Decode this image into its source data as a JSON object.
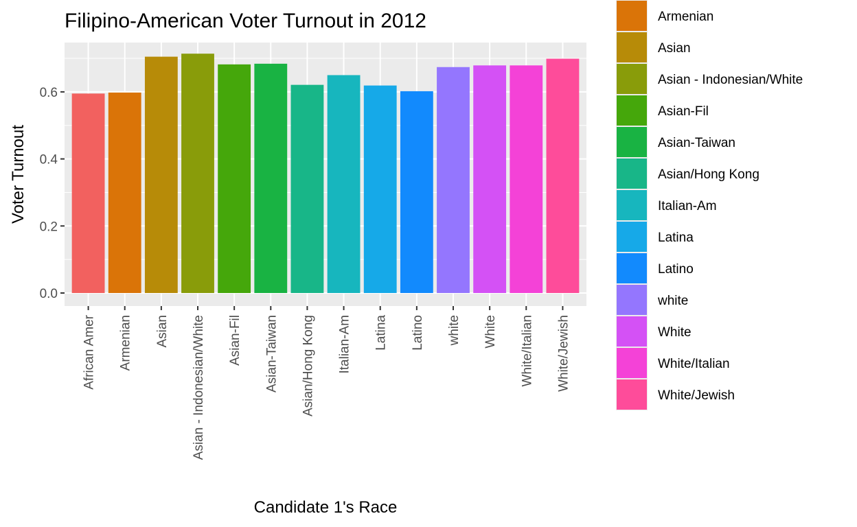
{
  "chart_data": {
    "type": "bar",
    "title": "Filipino-American Voter Turnout in 2012",
    "xlabel": "Candidate 1's Race",
    "ylabel": "Voter Turnout",
    "ylim": [
      0,
      0.75
    ],
    "yticks": [
      0.0,
      0.2,
      0.4,
      0.6
    ],
    "ytick_labels": [
      "0.0",
      "0.2",
      "0.4",
      "0.6"
    ],
    "grid": true,
    "legend_position": "right",
    "categories": [
      "African Amer",
      "Armenian",
      "Asian",
      "Asian - Indonesian/White",
      "Asian-Fil",
      "Asian-Taiwan",
      "Asian/Hong Kong",
      "Italian-Am",
      "Latina",
      "Latino",
      "white",
      "White",
      "White/Italian",
      "White/Jewish"
    ],
    "values": [
      0.595,
      0.598,
      0.705,
      0.714,
      0.682,
      0.684,
      0.621,
      0.65,
      0.619,
      0.602,
      0.674,
      0.679,
      0.679,
      0.699
    ],
    "colors": [
      "#F8766D",
      "#DB8E00",
      "#AEA200",
      "#64B200",
      "#00BD5C",
      "#00C1A7",
      "#00BADE",
      "#00A6FF",
      "#B385FF",
      "#EF67EB",
      "#FF63B6",
      "#FF6C91",
      "#F564E3",
      "#FF64B0"
    ],
    "bar_colors": [
      "#F2615F",
      "#DA7408",
      "#B78B08",
      "#899C0A",
      "#45A70B",
      "#19B343",
      "#18B688",
      "#17B6BE",
      "#16A9E8",
      "#128AFD",
      "#9476FE",
      "#D451F5",
      "#F442D7",
      "#FE4C9A"
    ],
    "legend": [
      "Armenian",
      "Asian",
      "Asian - Indonesian/White",
      "Asian-Fil",
      "Asian-Taiwan",
      "Asian/Hong Kong",
      "Italian-Am",
      "Latina",
      "Latino",
      "white",
      "White",
      "White/Italian",
      "White/Jewish"
    ],
    "legend_colors": [
      "#DA7408",
      "#B78B08",
      "#899C0A",
      "#45A70B",
      "#19B343",
      "#18B688",
      "#17B6BE",
      "#16A9E8",
      "#128AFD",
      "#9476FE",
      "#D451F5",
      "#F442D7",
      "#FE4C9A"
    ],
    "panel_background": "#EBEBEB",
    "grid_color": "#FFFFFF"
  }
}
